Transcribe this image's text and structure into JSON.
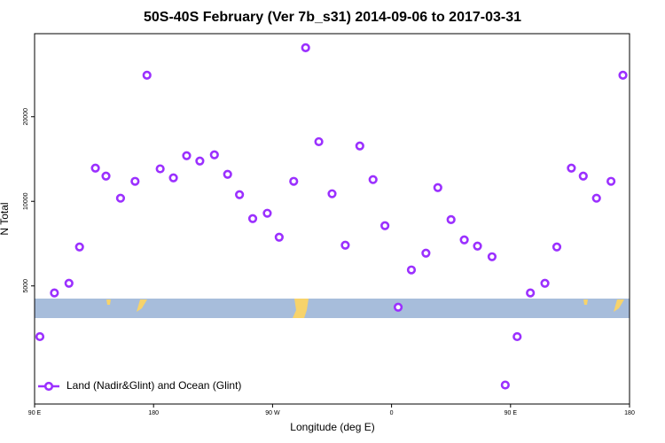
{
  "chart_data": {
    "type": "scatter",
    "title": "50S-40S February (Ver 7b_s31)   2014-09-06 to 2017-03-31",
    "xlabel": "Longitude (deg E)",
    "ylabel": "N Total",
    "log_y": true,
    "legend": "lower left",
    "xlim": [
      90,
      540
    ],
    "xticks": [
      {
        "value": 90,
        "label": "90 E"
      },
      180,
      {
        "value": 270,
        "label": "90 W"
      },
      {
        "value": 360,
        "label": "0"
      },
      {
        "value": 450,
        "label": "90 E"
      },
      {
        "value": 540,
        "label": "180"
      }
    ],
    "ylim": [
      1900,
      39500
    ],
    "yticks": [
      5000,
      10000,
      20000
    ],
    "series": [
      {
        "name": "Land (Nadir&Glint) and Ocean (Glint)",
        "color": "#9b30ff",
        "x": [
          94,
          105,
          116,
          124,
          136,
          144,
          155,
          166,
          175,
          185,
          195,
          205,
          215,
          226,
          236,
          245,
          255,
          266,
          275,
          286,
          295,
          305,
          315,
          325,
          336,
          346,
          355,
          365,
          375,
          386,
          395,
          405,
          415,
          425,
          436,
          446,
          455,
          465,
          476,
          485,
          496,
          505,
          515,
          526,
          535
        ],
        "values": [
          3300,
          4720,
          5110,
          6880,
          13130,
          12300,
          10260,
          11780,
          28100,
          13050,
          12120,
          14530,
          13910,
          14640,
          12480,
          10560,
          8680,
          9070,
          7450,
          11780,
          35200,
          16300,
          10640,
          6980,
          15740,
          11950,
          8190,
          4200,
          5700,
          6540,
          11190,
          8610,
          7290,
          6930,
          6350,
          2220,
          3300,
          4720,
          5110,
          6880,
          13130,
          12300,
          10260,
          11780,
          28100
        ]
      }
    ]
  }
}
